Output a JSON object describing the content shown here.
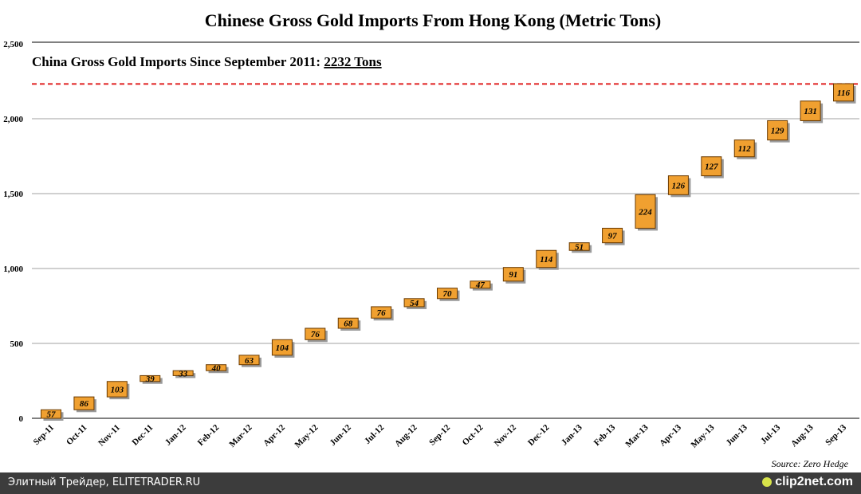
{
  "colors": {
    "bar_fill": "#f0a030",
    "bar_stroke": "#6a3a00",
    "shadow": "#9a9a9a",
    "grid": "#a0a0a0",
    "ref_line": "#e02020",
    "footer_bg": "#3c3c3c",
    "logo_accent": "#d7e34a"
  },
  "chart_data": {
    "type": "waterfall",
    "title": "Chinese Gross Gold Imports From Hong Kong (Metric Tons)",
    "annotation": {
      "text": "China Gross Gold Imports Since September 2011: ",
      "value_text": "2232 Tons",
      "reference_value": 2232
    },
    "ylim": [
      0,
      2500
    ],
    "yticks": [
      0,
      500,
      1000,
      1500,
      2000,
      2500
    ],
    "ytick_labels": [
      "0",
      "500",
      "1,000",
      "1,500",
      "2,000",
      "2,500"
    ],
    "categories": [
      "Sep-11",
      "Oct-11",
      "Nov-11",
      "Dec-11",
      "Jan-12",
      "Feb-12",
      "Mar-12",
      "Apr-12",
      "May-12",
      "Jun-12",
      "Jul-12",
      "Aug-12",
      "Sep-12",
      "Oct-12",
      "Nov-12",
      "Dec-12",
      "Jan-13",
      "Feb-13",
      "Mar-13",
      "Apr-13",
      "May-13",
      "Jun-13",
      "Jul-13",
      "Aug-13",
      "Sep-13"
    ],
    "values": [
      57,
      86,
      103,
      39,
      33,
      40,
      63,
      104,
      76,
      68,
      76,
      54,
      70,
      47,
      91,
      114,
      51,
      97,
      224,
      126,
      127,
      112,
      129,
      131,
      116
    ],
    "source": "Source: Zero Hedge"
  },
  "footer": {
    "left_text": "Элитный Трейдер, ELITETRADER.RU",
    "right_text": "clip2net.com",
    "logo_icon": "clip2net-logo-icon"
  }
}
